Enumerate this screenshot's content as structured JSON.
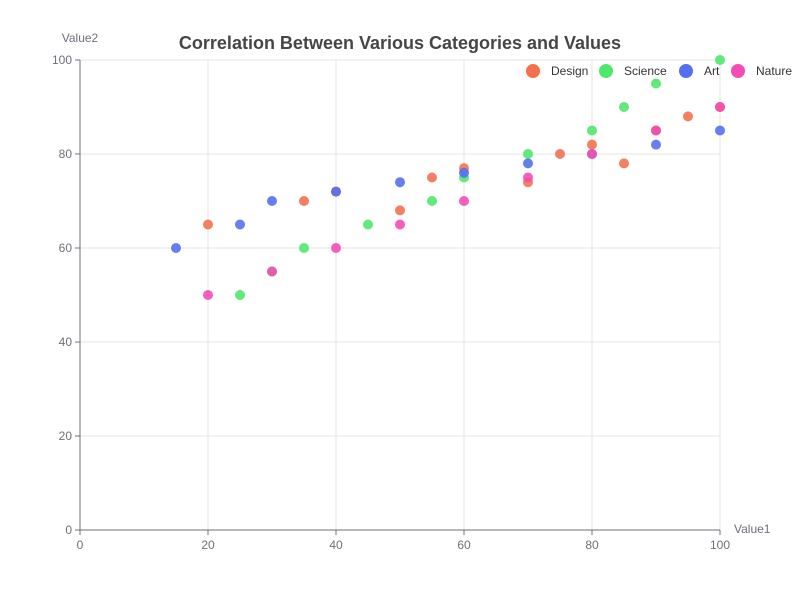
{
  "chart_data": {
    "type": "scatter",
    "title": "Correlation Between Various Categories and Values",
    "xlabel": "Value1",
    "ylabel": "Value2",
    "xlim": [
      0,
      100
    ],
    "ylim": [
      0,
      100
    ],
    "x_ticks": [
      0,
      20,
      40,
      60,
      80,
      100
    ],
    "y_ticks": [
      0,
      20,
      40,
      60,
      80,
      100
    ],
    "grid": true,
    "legend_position": "top-right",
    "series": [
      {
        "name": "Design",
        "color": "#f4714f",
        "points": [
          [
            20,
            65
          ],
          [
            35,
            70
          ],
          [
            40,
            72
          ],
          [
            50,
            68
          ],
          [
            55,
            75
          ],
          [
            60,
            77
          ],
          [
            70,
            74
          ],
          [
            75,
            80
          ],
          [
            80,
            82
          ],
          [
            85,
            78
          ],
          [
            90,
            85
          ],
          [
            95,
            88
          ],
          [
            100,
            90
          ]
        ]
      },
      {
        "name": "Science",
        "color": "#4ee86c",
        "points": [
          [
            25,
            50
          ],
          [
            30,
            55
          ],
          [
            35,
            60
          ],
          [
            45,
            65
          ],
          [
            55,
            70
          ],
          [
            60,
            75
          ],
          [
            70,
            80
          ],
          [
            80,
            85
          ],
          [
            85,
            90
          ],
          [
            90,
            95
          ],
          [
            100,
            100
          ]
        ]
      },
      {
        "name": "Art",
        "color": "#5470f0",
        "points": [
          [
            15,
            60
          ],
          [
            25,
            65
          ],
          [
            30,
            70
          ],
          [
            40,
            72
          ],
          [
            50,
            74
          ],
          [
            60,
            76
          ],
          [
            70,
            78
          ],
          [
            80,
            80
          ],
          [
            90,
            82
          ],
          [
            100,
            85
          ]
        ]
      },
      {
        "name": "Nature",
        "color": "#f44cb4",
        "points": [
          [
            20,
            50
          ],
          [
            30,
            55
          ],
          [
            40,
            60
          ],
          [
            50,
            65
          ],
          [
            60,
            70
          ],
          [
            70,
            75
          ],
          [
            80,
            80
          ],
          [
            90,
            85
          ],
          [
            100,
            90
          ]
        ]
      }
    ]
  }
}
